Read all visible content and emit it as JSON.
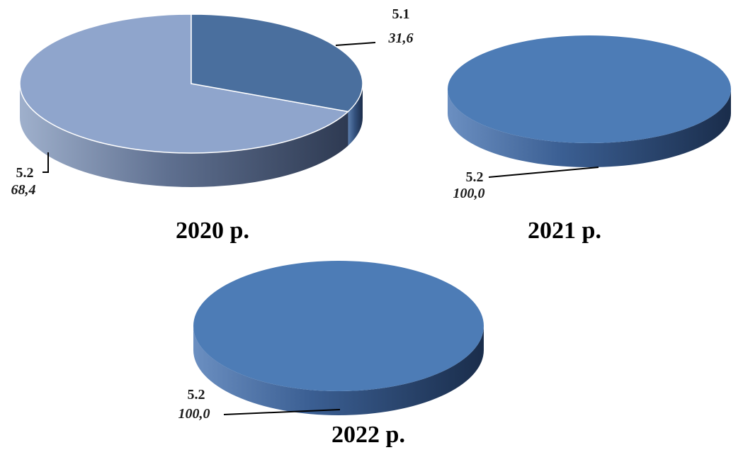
{
  "chart_data": [
    {
      "type": "pie",
      "title": "2020 р.",
      "slices": [
        {
          "category": "5.1",
          "value": 31.6,
          "value_label": "31,6",
          "color": "#4a6f9e"
        },
        {
          "category": "5.2",
          "value": 68.4,
          "value_label": "68,4",
          "color": "#8fa5cc"
        }
      ]
    },
    {
      "type": "pie",
      "title": "2021 р.",
      "slices": [
        {
          "category": "5.2",
          "value": 100.0,
          "value_label": "100,0",
          "color": "#4d7cb6"
        }
      ]
    },
    {
      "type": "pie",
      "title": "2022 р.",
      "slices": [
        {
          "category": "5.2",
          "value": 100.0,
          "value_label": "100,0",
          "color": "#4d7cb6"
        }
      ]
    }
  ]
}
